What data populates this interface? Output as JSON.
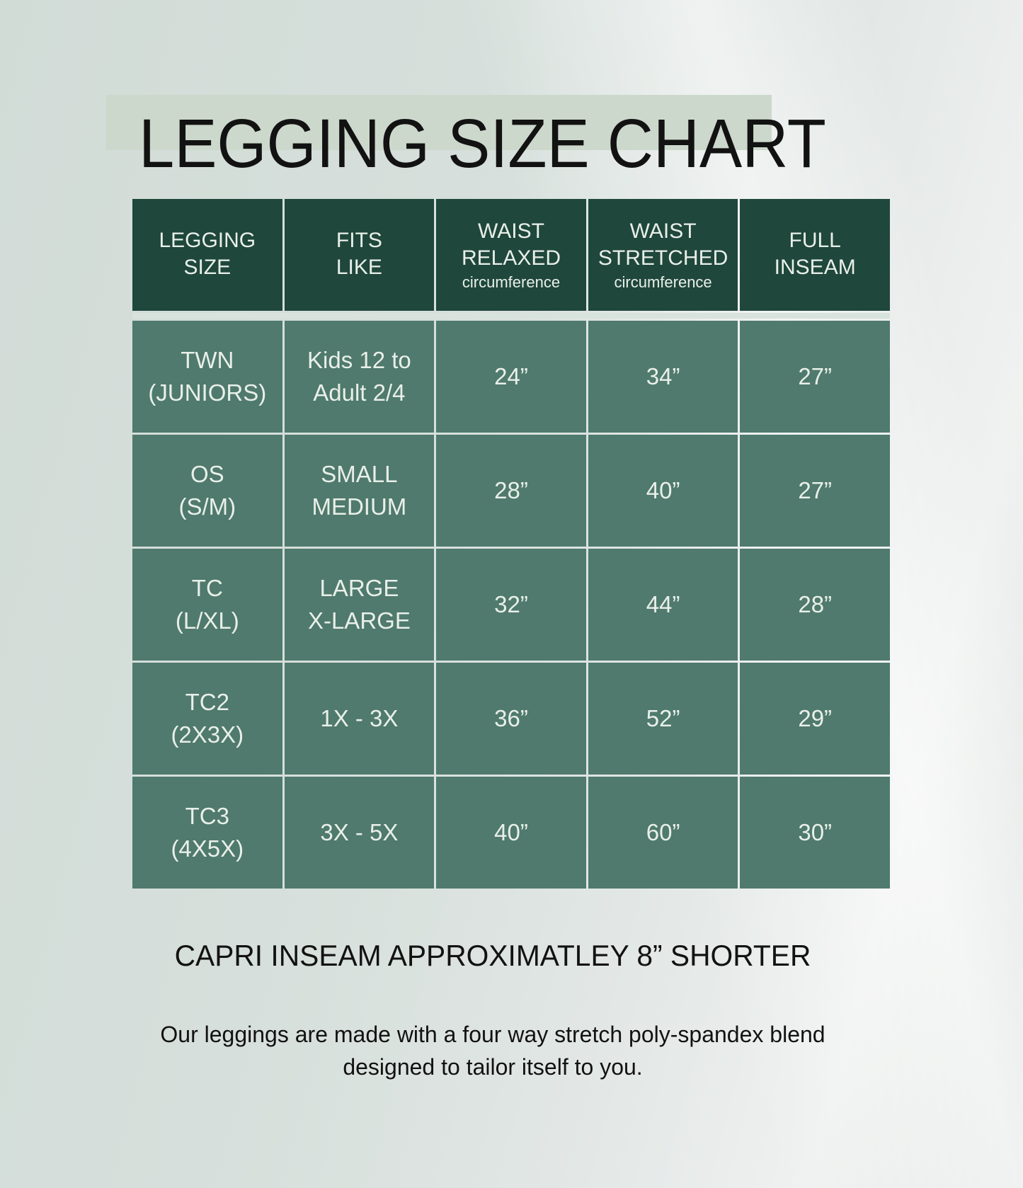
{
  "title": "LEGGING SIZE CHART",
  "table": {
    "headers": [
      {
        "label": "LEGGING\nSIZE",
        "sub": ""
      },
      {
        "label": "FITS\nLIKE",
        "sub": ""
      },
      {
        "label": "WAIST\nRELAXED",
        "sub": "circumference"
      },
      {
        "label": "WAIST\nSTRETCHED",
        "sub": "circumference"
      },
      {
        "label": "FULL\nINSEAM",
        "sub": ""
      }
    ],
    "rows": [
      {
        "size": "TWN\n(JUNIORS)",
        "fits": "Kids 12 to\nAdult 2/4",
        "relaxed": "24”",
        "stretched": "34”",
        "inseam": "27”"
      },
      {
        "size": "OS\n(S/M)",
        "fits": "SMALL\nMEDIUM",
        "relaxed": "28”",
        "stretched": "40”",
        "inseam": "27”"
      },
      {
        "size": "TC\n(L/XL)",
        "fits": "LARGE\nX-LARGE",
        "relaxed": "32”",
        "stretched": "44”",
        "inseam": "28”"
      },
      {
        "size": "TC2\n(2X3X)",
        "fits": "1X - 3X",
        "relaxed": "36”",
        "stretched": "52”",
        "inseam": "29”"
      },
      {
        "size": "TC3\n(4X5X)",
        "fits": "3X - 5X",
        "relaxed": "40”",
        "stretched": "60”",
        "inseam": "30”"
      }
    ]
  },
  "notes": {
    "capri": "CAPRI INSEAM APPROXIMATLEY 8” SHORTER",
    "description_line1": "Our leggings are made with a four way stretch poly-spandex blend",
    "description_line2": "designed to tailor itself to you."
  },
  "colors": {
    "header_bg": "#1f473c",
    "cell_bg": "#4f7a6d",
    "divider": "#eef3ef",
    "header_divider": "#d9e3dd",
    "title_highlight": "#ccd8cc",
    "text_light": "#e9efe9",
    "text_dark": "#121212",
    "background": "#d8e1dd"
  }
}
